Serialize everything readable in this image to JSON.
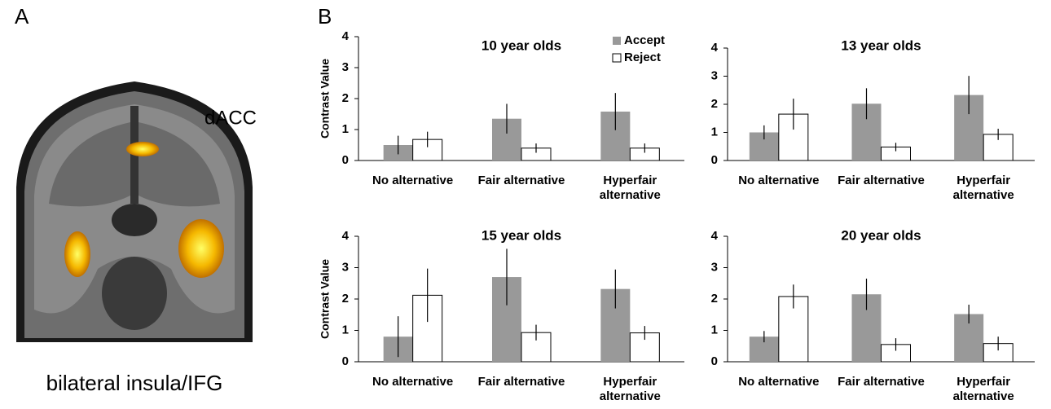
{
  "panel_letters": [
    "A",
    "B"
  ],
  "brain": {
    "top_label": "dACC",
    "bottom_label": "bilateral insula/IFG"
  },
  "chart_data": [
    {
      "type": "bar",
      "title": "10 year olds",
      "ylabel": "Contrast Value",
      "legend": "upper right",
      "categories": [
        "No alternative",
        "Fair alternative",
        "Hyperfair alternative"
      ],
      "series": [
        {
          "name": "Accept",
          "color": "#999999",
          "values": [
            0.5,
            1.35,
            1.58
          ],
          "errors": [
            0.3,
            0.48,
            0.6
          ]
        },
        {
          "name": "Reject",
          "color": "#ffffff",
          "values": [
            0.68,
            0.4,
            0.4
          ],
          "errors": [
            0.25,
            0.15,
            0.15
          ]
        }
      ],
      "ylim": [
        0,
        4
      ],
      "yticks": [
        0,
        1,
        2,
        3,
        4
      ]
    },
    {
      "type": "bar",
      "title": "13 year olds",
      "categories": [
        "No alternative",
        "Fair alternative",
        "Hyperfair alternative"
      ],
      "series": [
        {
          "name": "Accept",
          "color": "#999999",
          "values": [
            1.0,
            2.02,
            2.33
          ],
          "errors": [
            0.25,
            0.55,
            0.68
          ]
        },
        {
          "name": "Reject",
          "color": "#ffffff",
          "values": [
            1.65,
            0.48,
            0.93
          ],
          "errors": [
            0.55,
            0.15,
            0.2
          ]
        }
      ],
      "ylim": [
        0,
        4
      ],
      "yticks": [
        0,
        1,
        2,
        3,
        4
      ]
    },
    {
      "type": "bar",
      "title": "15 year olds",
      "ylabel": "Contrast Value",
      "categories": [
        "No alternative",
        "Fair alternative",
        "Hyperfair alternative"
      ],
      "series": [
        {
          "name": "Accept",
          "color": "#999999",
          "values": [
            0.8,
            2.7,
            2.32
          ],
          "errors": [
            0.65,
            0.9,
            0.62
          ]
        },
        {
          "name": "Reject",
          "color": "#ffffff",
          "values": [
            2.12,
            0.93,
            0.92
          ],
          "errors": [
            0.85,
            0.25,
            0.22
          ]
        }
      ],
      "ylim": [
        0,
        4
      ],
      "yticks": [
        0,
        1,
        2,
        3,
        4
      ]
    },
    {
      "type": "bar",
      "title": "20 year olds",
      "categories": [
        "No alternative",
        "Fair alternative",
        "Hyperfair alternative"
      ],
      "series": [
        {
          "name": "Accept",
          "color": "#999999",
          "values": [
            0.8,
            2.15,
            1.52
          ],
          "errors": [
            0.18,
            0.5,
            0.3
          ]
        },
        {
          "name": "Reject",
          "color": "#ffffff",
          "values": [
            2.08,
            0.55,
            0.58
          ],
          "errors": [
            0.38,
            0.2,
            0.22
          ]
        }
      ],
      "ylim": [
        0,
        4
      ],
      "yticks": [
        0,
        1,
        2,
        3,
        4
      ]
    }
  ]
}
